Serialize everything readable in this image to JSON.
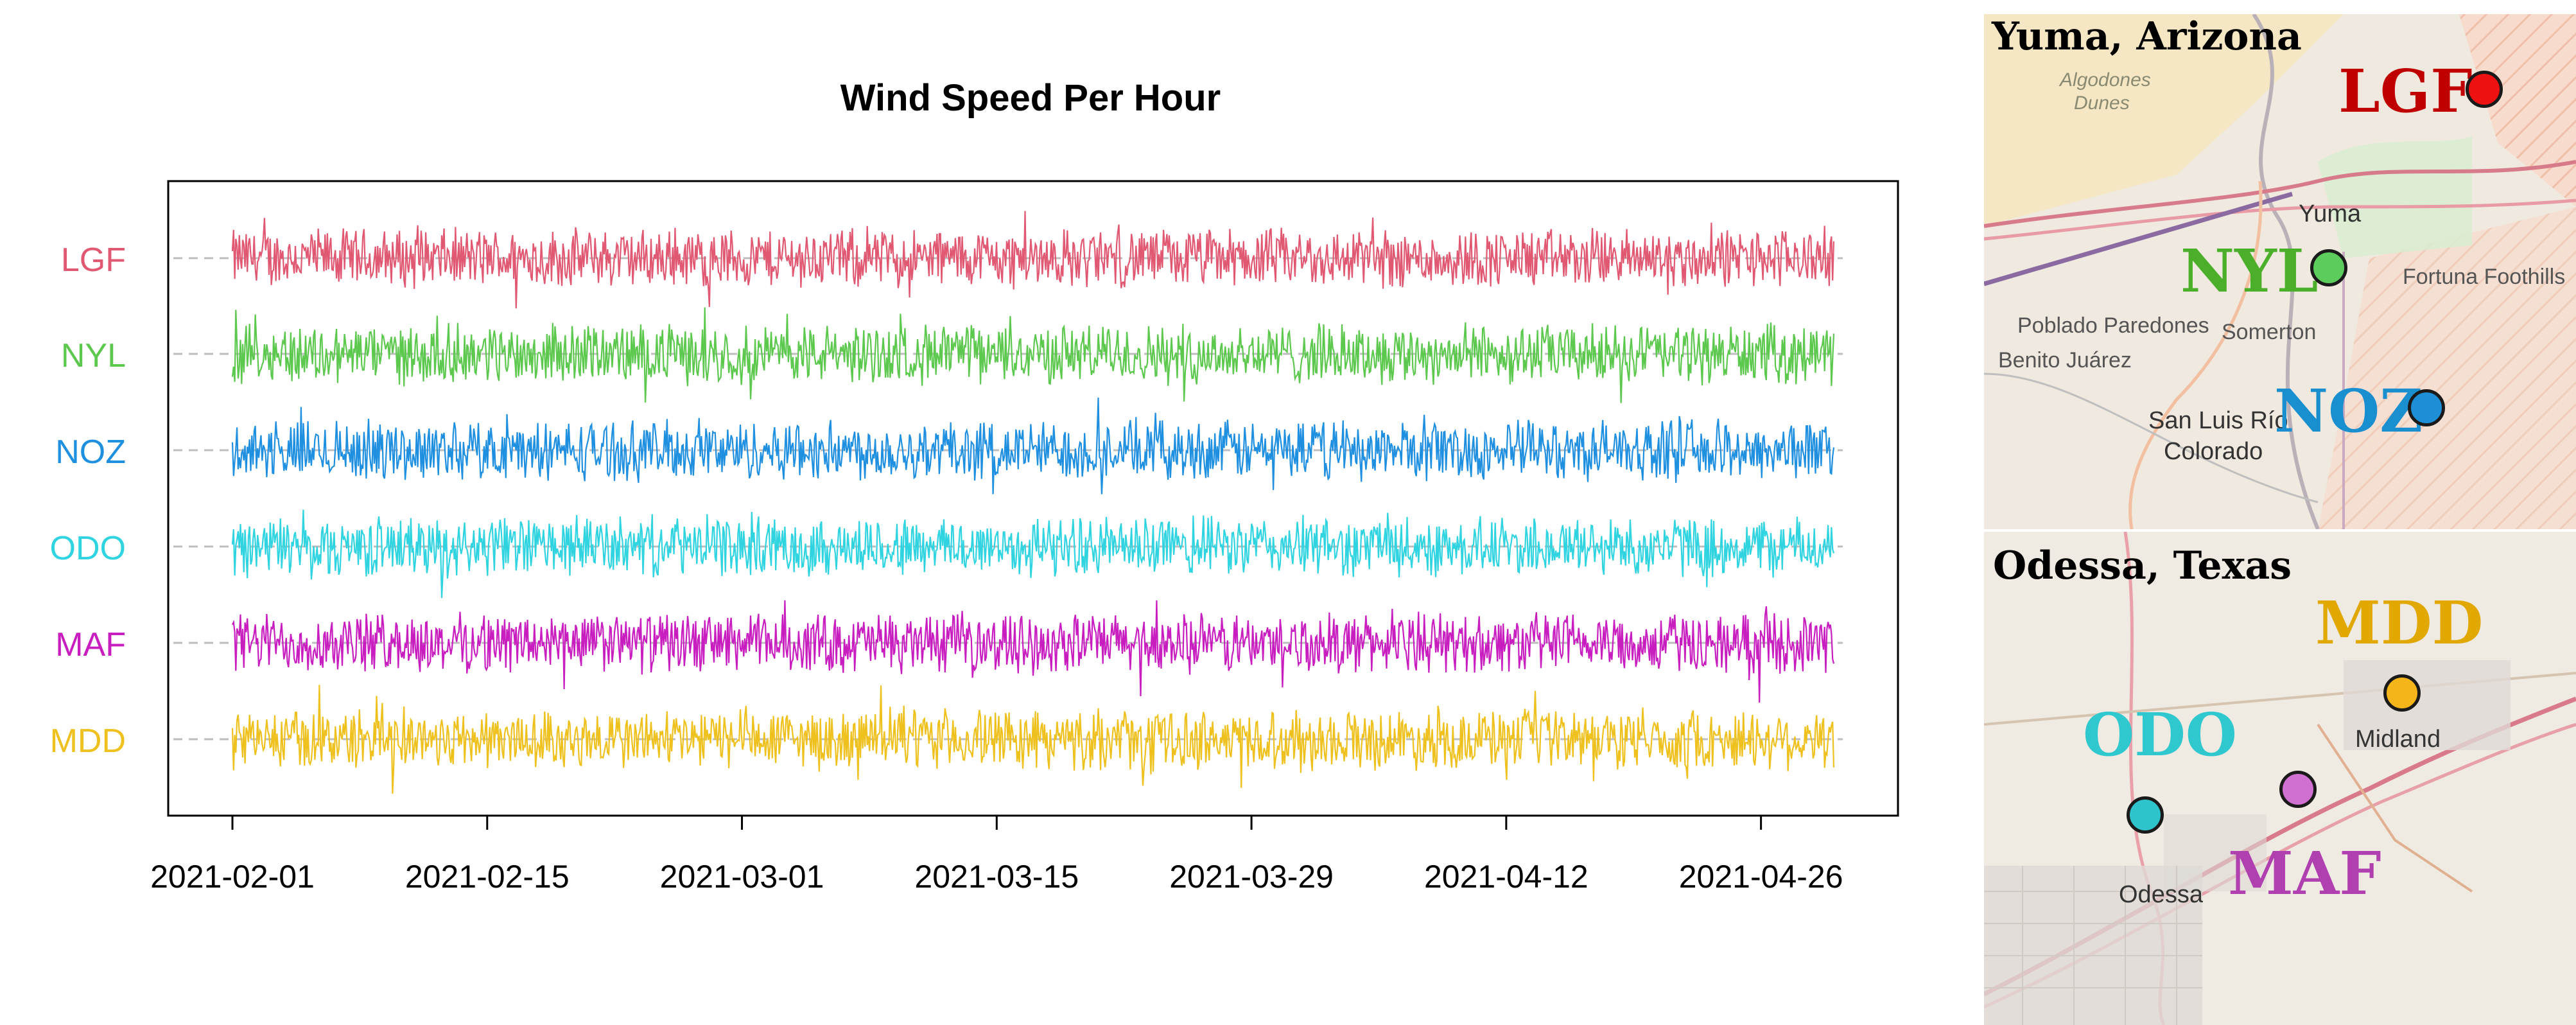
{
  "chart_data": {
    "type": "line",
    "title": "Wind Speed Per Hour",
    "xlabel": "",
    "ylabel": "",
    "x_range": [
      "2021-02-01",
      "2021-04-30"
    ],
    "x_ticks": [
      "2021-02-01",
      "2021-02-15",
      "2021-03-01",
      "2021-03-15",
      "2021-03-29",
      "2021-04-12",
      "2021-04-26"
    ],
    "grid": "dashed horizontal baseline per series",
    "legend": "none (series names as y-axis labels)",
    "series": [
      {
        "name": "LGF",
        "color": "#e05872"
      },
      {
        "name": "NYL",
        "color": "#5cc84e"
      },
      {
        "name": "NOZ",
        "color": "#1f8fe0"
      },
      {
        "name": "ODO",
        "color": "#2fd4e0"
      },
      {
        "name": "MAF",
        "color": "#c81ec0"
      },
      {
        "name": "MDD",
        "color": "#eec11e"
      }
    ]
  },
  "maps": {
    "yuma": {
      "title": "Yuma, Arizona",
      "places": [
        "Algodones",
        "Dunes",
        "Yuma",
        "Fortuna Foothills",
        "Poblado Paredones",
        "Somerton",
        "Benito Juárez",
        "San Luis Río",
        "Colorado"
      ],
      "sites": [
        {
          "label": "LGF",
          "color": "#c00000",
          "dot_color": "#ee1111"
        },
        {
          "label": "NYL",
          "color": "#4caf2a",
          "dot_color": "#5ccc5c"
        },
        {
          "label": "NOZ",
          "color": "#1a8fd0",
          "dot_color": "#1e8fd6"
        }
      ]
    },
    "odessa": {
      "title": "Odessa, Texas",
      "places": [
        "Midland",
        "Odessa"
      ],
      "sites": [
        {
          "label": "MDD",
          "color": "#e0a800",
          "dot_color": "#f4b51a"
        },
        {
          "label": "ODO",
          "color": "#30c8cf",
          "dot_color": "#2fc4cc"
        },
        {
          "label": "MAF",
          "color": "#b040b0",
          "dot_color": "#d070d0"
        }
      ]
    }
  }
}
